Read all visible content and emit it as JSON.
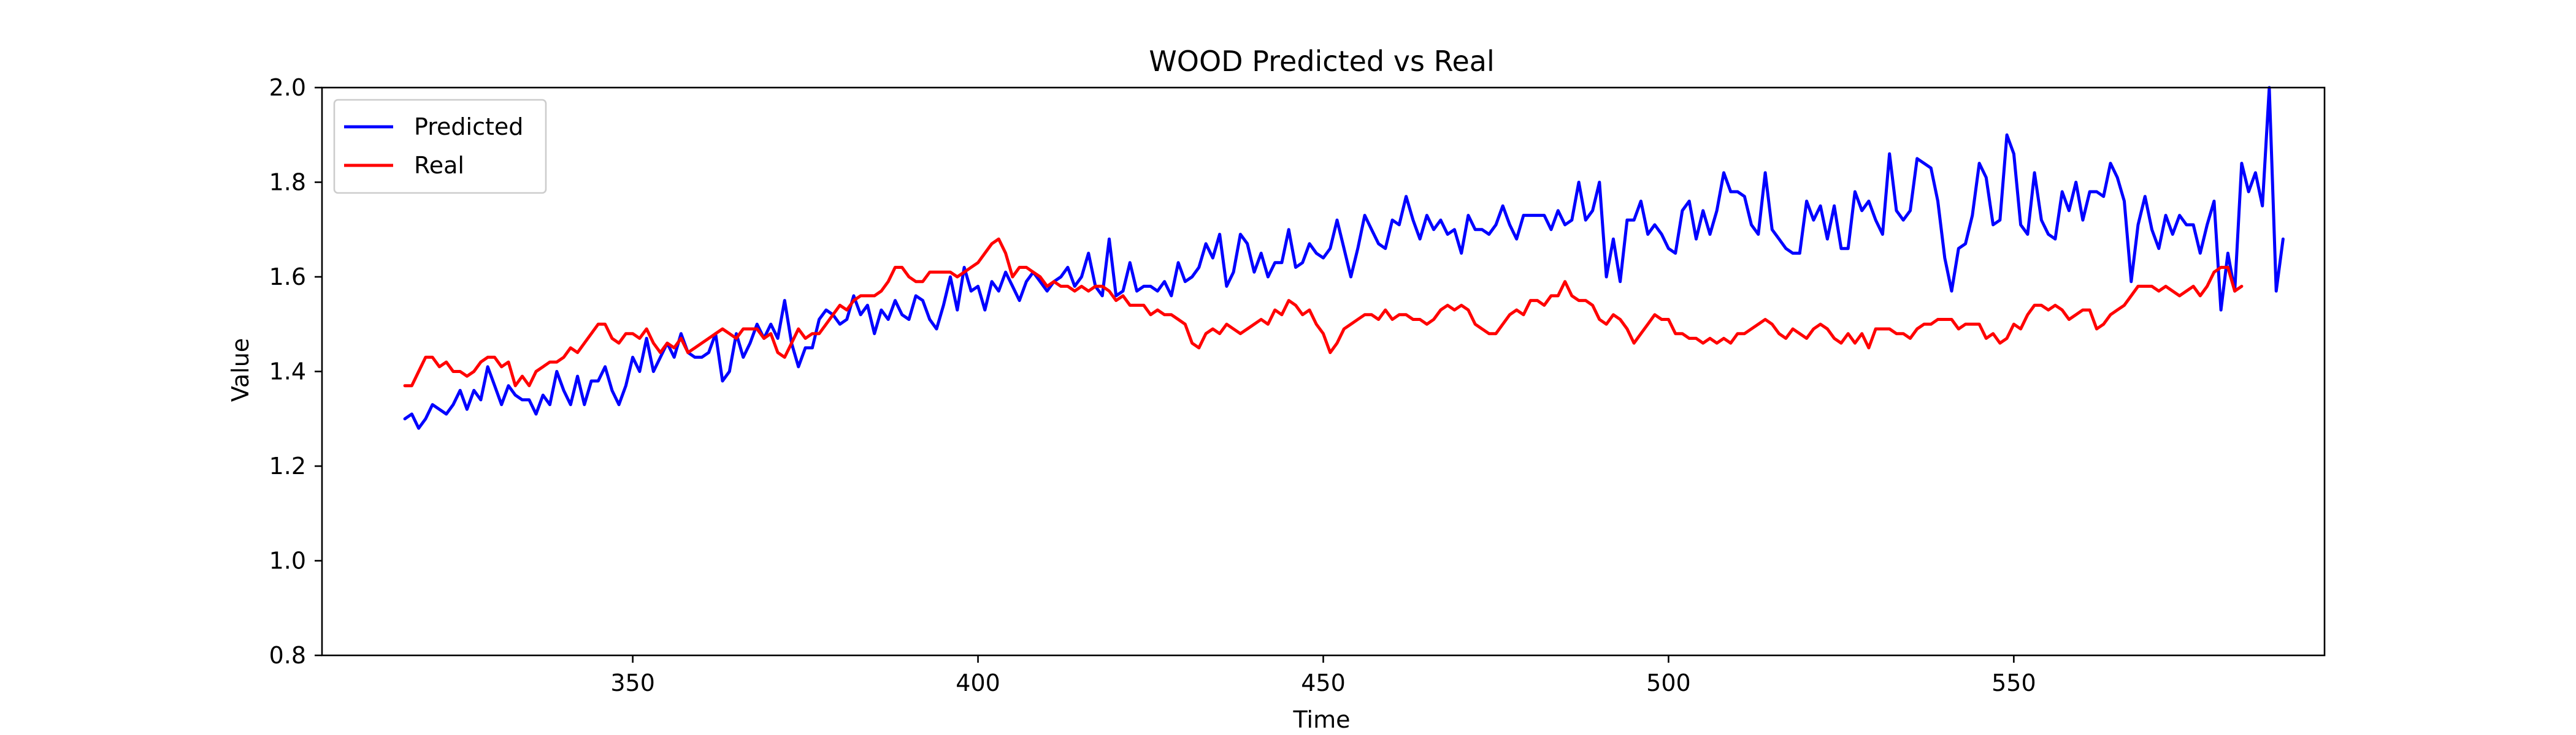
{
  "chart_data": {
    "type": "line",
    "title": "WOOD Predicted vs Real",
    "xlabel": "Time",
    "ylabel": "Value",
    "xlim": [
      305,
      595
    ],
    "ylim": [
      0.8,
      2.0
    ],
    "xticks": [
      350,
      400,
      450,
      500,
      550
    ],
    "yticks": [
      0.8,
      1.0,
      1.2,
      1.4,
      1.6,
      1.8,
      2.0
    ],
    "grid": false,
    "legend": "top-left",
    "x_start": 317,
    "x_step": 1,
    "series": [
      {
        "name": "Predicted",
        "color": "#0000ff",
        "values": [
          1.3,
          1.31,
          1.28,
          1.3,
          1.33,
          1.32,
          1.31,
          1.33,
          1.36,
          1.32,
          1.36,
          1.34,
          1.41,
          1.37,
          1.33,
          1.37,
          1.35,
          1.34,
          1.34,
          1.31,
          1.35,
          1.33,
          1.4,
          1.36,
          1.33,
          1.39,
          1.33,
          1.38,
          1.38,
          1.41,
          1.36,
          1.33,
          1.37,
          1.43,
          1.4,
          1.47,
          1.4,
          1.43,
          1.46,
          1.43,
          1.48,
          1.44,
          1.43,
          1.43,
          1.44,
          1.48,
          1.38,
          1.4,
          1.48,
          1.43,
          1.46,
          1.5,
          1.47,
          1.5,
          1.47,
          1.55,
          1.46,
          1.41,
          1.45,
          1.45,
          1.51,
          1.53,
          1.52,
          1.5,
          1.51,
          1.56,
          1.52,
          1.54,
          1.48,
          1.53,
          1.51,
          1.55,
          1.52,
          1.51,
          1.56,
          1.55,
          1.51,
          1.49,
          1.54,
          1.6,
          1.53,
          1.62,
          1.57,
          1.58,
          1.53,
          1.59,
          1.57,
          1.61,
          1.58,
          1.55,
          1.59,
          1.61,
          1.59,
          1.57,
          1.59,
          1.6,
          1.62,
          1.58,
          1.6,
          1.65,
          1.58,
          1.56,
          1.68,
          1.56,
          1.57,
          1.63,
          1.57,
          1.58,
          1.58,
          1.57,
          1.59,
          1.56,
          1.63,
          1.59,
          1.6,
          1.62,
          1.67,
          1.64,
          1.69,
          1.58,
          1.61,
          1.69,
          1.67,
          1.61,
          1.65,
          1.6,
          1.63,
          1.63,
          1.7,
          1.62,
          1.63,
          1.67,
          1.65,
          1.64,
          1.66,
          1.72,
          1.66,
          1.6,
          1.66,
          1.73,
          1.7,
          1.67,
          1.66,
          1.72,
          1.71,
          1.77,
          1.72,
          1.68,
          1.73,
          1.7,
          1.72,
          1.69,
          1.7,
          1.65,
          1.73,
          1.7,
          1.7,
          1.69,
          1.71,
          1.75,
          1.71,
          1.68,
          1.73,
          1.73,
          1.73,
          1.73,
          1.7,
          1.74,
          1.71,
          1.72,
          1.8,
          1.72,
          1.74,
          1.8,
          1.6,
          1.68,
          1.59,
          1.72,
          1.72,
          1.76,
          1.69,
          1.71,
          1.69,
          1.66,
          1.65,
          1.74,
          1.76,
          1.68,
          1.74,
          1.69,
          1.74,
          1.82,
          1.78,
          1.78,
          1.77,
          1.71,
          1.69,
          1.82,
          1.7,
          1.68,
          1.66,
          1.65,
          1.65,
          1.76,
          1.72,
          1.75,
          1.68,
          1.75,
          1.66,
          1.66,
          1.78,
          1.74,
          1.76,
          1.72,
          1.69,
          1.86,
          1.74,
          1.72,
          1.74,
          1.85,
          1.84,
          1.83,
          1.76,
          1.64,
          1.57,
          1.66,
          1.67,
          1.73,
          1.84,
          1.81,
          1.71,
          1.72,
          1.9,
          1.86,
          1.71,
          1.69,
          1.82,
          1.72,
          1.69,
          1.68,
          1.78,
          1.74,
          1.8,
          1.72,
          1.78,
          1.78,
          1.77,
          1.84,
          1.81,
          1.76,
          1.59,
          1.71,
          1.77,
          1.7,
          1.66,
          1.73,
          1.69,
          1.73,
          1.71,
          1.71,
          1.65,
          1.71,
          1.76,
          1.53,
          1.65,
          1.57,
          1.84,
          1.78,
          1.82,
          1.75,
          2.0,
          1.57,
          1.68
        ]
      },
      {
        "name": "Real",
        "color": "#ff0000",
        "values": [
          1.37,
          1.37,
          1.4,
          1.43,
          1.43,
          1.41,
          1.42,
          1.4,
          1.4,
          1.39,
          1.4,
          1.42,
          1.43,
          1.43,
          1.41,
          1.42,
          1.37,
          1.39,
          1.37,
          1.4,
          1.41,
          1.42,
          1.42,
          1.43,
          1.45,
          1.44,
          1.46,
          1.48,
          1.5,
          1.5,
          1.47,
          1.46,
          1.48,
          1.48,
          1.47,
          1.49,
          1.46,
          1.44,
          1.46,
          1.45,
          1.47,
          1.44,
          1.45,
          1.46,
          1.47,
          1.48,
          1.49,
          1.48,
          1.47,
          1.49,
          1.49,
          1.49,
          1.47,
          1.48,
          1.44,
          1.43,
          1.46,
          1.49,
          1.47,
          1.48,
          1.48,
          1.5,
          1.52,
          1.54,
          1.53,
          1.55,
          1.56,
          1.56,
          1.56,
          1.57,
          1.59,
          1.62,
          1.62,
          1.6,
          1.59,
          1.59,
          1.61,
          1.61,
          1.61,
          1.61,
          1.6,
          1.61,
          1.62,
          1.63,
          1.65,
          1.67,
          1.68,
          1.65,
          1.6,
          1.62,
          1.62,
          1.61,
          1.6,
          1.58,
          1.59,
          1.58,
          1.58,
          1.57,
          1.58,
          1.57,
          1.58,
          1.58,
          1.57,
          1.55,
          1.56,
          1.54,
          1.54,
          1.54,
          1.52,
          1.53,
          1.52,
          1.52,
          1.51,
          1.5,
          1.46,
          1.45,
          1.48,
          1.49,
          1.48,
          1.5,
          1.49,
          1.48,
          1.49,
          1.5,
          1.51,
          1.5,
          1.53,
          1.52,
          1.55,
          1.54,
          1.52,
          1.53,
          1.5,
          1.48,
          1.44,
          1.46,
          1.49,
          1.5,
          1.51,
          1.52,
          1.52,
          1.51,
          1.53,
          1.51,
          1.52,
          1.52,
          1.51,
          1.51,
          1.5,
          1.51,
          1.53,
          1.54,
          1.53,
          1.54,
          1.53,
          1.5,
          1.49,
          1.48,
          1.48,
          1.5,
          1.52,
          1.53,
          1.52,
          1.55,
          1.55,
          1.54,
          1.56,
          1.56,
          1.59,
          1.56,
          1.55,
          1.55,
          1.54,
          1.51,
          1.5,
          1.52,
          1.51,
          1.49,
          1.46,
          1.48,
          1.5,
          1.52,
          1.51,
          1.51,
          1.48,
          1.48,
          1.47,
          1.47,
          1.46,
          1.47,
          1.46,
          1.47,
          1.46,
          1.48,
          1.48,
          1.49,
          1.5,
          1.51,
          1.5,
          1.48,
          1.47,
          1.49,
          1.48,
          1.47,
          1.49,
          1.5,
          1.49,
          1.47,
          1.46,
          1.48,
          1.46,
          1.48,
          1.45,
          1.49,
          1.49,
          1.49,
          1.48,
          1.48,
          1.47,
          1.49,
          1.5,
          1.5,
          1.51,
          1.51,
          1.51,
          1.49,
          1.5,
          1.5,
          1.5,
          1.47,
          1.48,
          1.46,
          1.47,
          1.5,
          1.49,
          1.52,
          1.54,
          1.54,
          1.53,
          1.54,
          1.53,
          1.51,
          1.52,
          1.53,
          1.53,
          1.49,
          1.5,
          1.52,
          1.53,
          1.54,
          1.56,
          1.58,
          1.58,
          1.58,
          1.57,
          1.58,
          1.57,
          1.56,
          1.57,
          1.58,
          1.56,
          1.58,
          1.61,
          1.62,
          1.62,
          1.57,
          1.58
        ]
      }
    ]
  }
}
